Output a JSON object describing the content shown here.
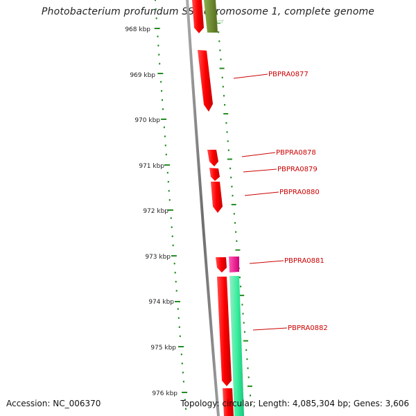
{
  "title": "Photobacterium profundum SS9 chromosome 1, complete genome",
  "accession": "Accession: NC_006370",
  "summary": "Topology: circular; Length: 4,085,304 bp; Genes: 3,606",
  "colors": {
    "backbone": "#808080",
    "ticks": "#228b22",
    "gene_forward": "#ff0000",
    "gene_rna": "#ff1493",
    "gene_reverse": "#3cf0a0",
    "gene_other": "#6b8e23",
    "gene_label": "#cc0000"
  },
  "scale_labels": [
    "968 kbp",
    "969 kbp",
    "970 kbp",
    "971 kbp",
    "972 kbp",
    "973 kbp",
    "974 kbp",
    "975 kbp",
    "976 kbp"
  ],
  "gene_labels": [
    "PBPRA0877",
    "PBPRA0878",
    "PBPRA0879",
    "PBPRA0880",
    "PBPRA0881",
    "PBPRA0882"
  ]
}
